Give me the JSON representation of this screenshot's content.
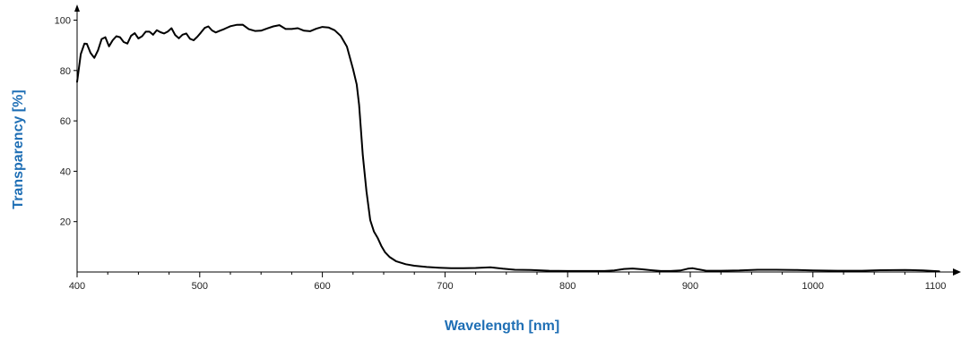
{
  "chart_data": {
    "type": "line",
    "xlabel": "Wavelength [nm]",
    "ylabel": "Transparency [%]",
    "xlim": [
      400,
      1110
    ],
    "ylim": [
      0,
      103
    ],
    "x_ticks": [
      400,
      500,
      600,
      700,
      800,
      900,
      1000,
      1100
    ],
    "x_tick_labels": [
      "400",
      "500",
      "600",
      "700",
      "800",
      "900",
      "1000",
      "1100"
    ],
    "y_ticks": [
      20,
      40,
      60,
      80,
      100
    ],
    "y_tick_labels": [
      "20",
      "40",
      "60",
      "80",
      "100"
    ],
    "grid": false,
    "label_color": "#1f6fb5",
    "line_color": "#000000",
    "series": [
      {
        "x": [
          400,
          403,
          406,
          408,
          411,
          414,
          417,
          420,
          423,
          426,
          429,
          432,
          435,
          438,
          441,
          444,
          447,
          450,
          453,
          456,
          459,
          462,
          465,
          468,
          471,
          474,
          477,
          480,
          483,
          486,
          489,
          492,
          495,
          498,
          501,
          504,
          507,
          510,
          513,
          516,
          520,
          525,
          530,
          535,
          540,
          545,
          550,
          555,
          560,
          565,
          570,
          575,
          580,
          585,
          590,
          595,
          600,
          605,
          610,
          615,
          620,
          625,
          628,
          630,
          633,
          636,
          639,
          642,
          645,
          648,
          651,
          655,
          660,
          668,
          675,
          685,
          695,
          705,
          715,
          725,
          737,
          747,
          757,
          770,
          785,
          800,
          815,
          830,
          838,
          846,
          853,
          860,
          868,
          876,
          884,
          892,
          898,
          902,
          906,
          913,
          925,
          940,
          955,
          970,
          985,
          1000,
          1020,
          1040,
          1055,
          1075,
          1090,
          1103
        ],
        "y": [
          75.5,
          86.5,
          90.7,
          90.6,
          87,
          85,
          88,
          92.5,
          93.2,
          89.6,
          92,
          93.6,
          93.2,
          91.3,
          90.7,
          93.8,
          94.8,
          92.7,
          93.6,
          95.4,
          95.4,
          94.2,
          96,
          95.2,
          94.7,
          95.5,
          96.8,
          94.1,
          92.8,
          94.2,
          94.7,
          92.6,
          92,
          93.4,
          95.1,
          96.9,
          97.5,
          95.9,
          95.1,
          95.7,
          96.5,
          97.6,
          98.1,
          98.2,
          96.4,
          95.7,
          95.8,
          96.7,
          97.5,
          98,
          96.5,
          96.5,
          96.8,
          95.8,
          95.6,
          96.6,
          97.3,
          97.1,
          96,
          93.7,
          89.5,
          80.6,
          74.5,
          66.3,
          46.4,
          32,
          20.6,
          16.1,
          13.6,
          10.4,
          7.9,
          5.9,
          4.3,
          3.1,
          2.5,
          2,
          1.7,
          1.5,
          1.5,
          1.6,
          1.9,
          1.3,
          0.9,
          0.8,
          0.5,
          0.4,
          0.4,
          0.4,
          0.6,
          1.2,
          1.4,
          1.1,
          0.7,
          0.4,
          0.4,
          0.6,
          1.3,
          1.5,
          1.1,
          0.5,
          0.5,
          0.6,
          0.9,
          0.9,
          0.8,
          0.6,
          0.5,
          0.5,
          0.7,
          0.8,
          0.6,
          0.3
        ]
      }
    ]
  }
}
